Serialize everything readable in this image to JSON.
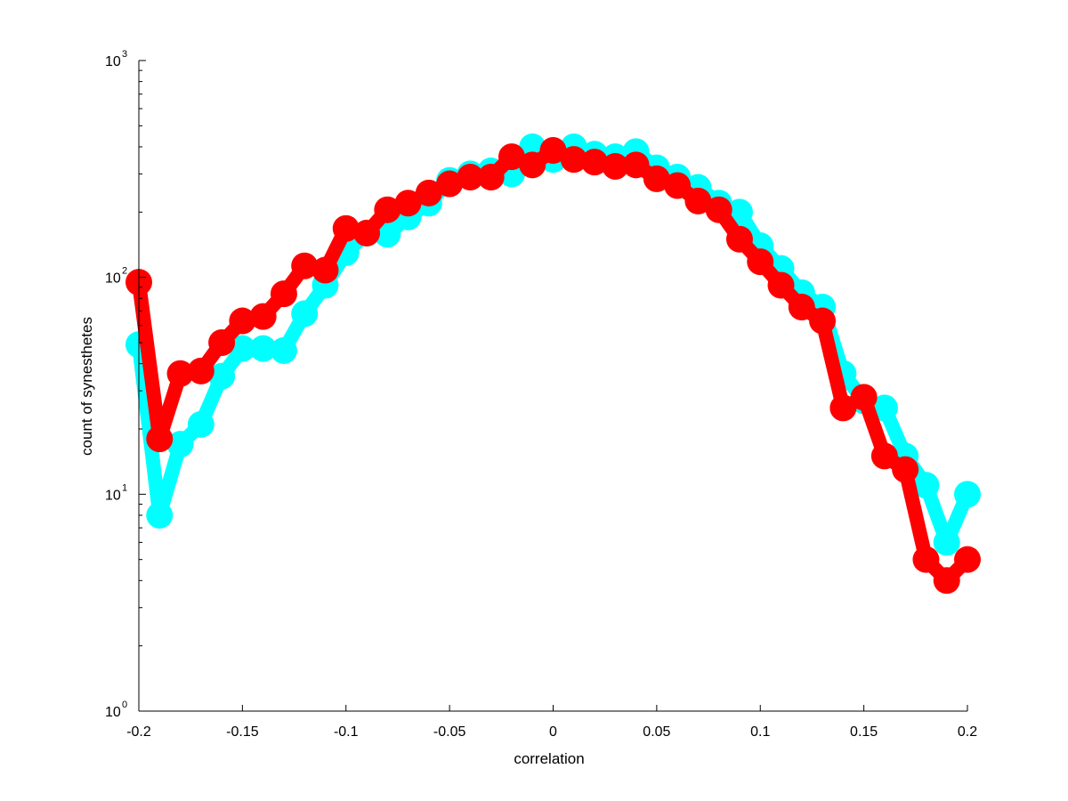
{
  "chart_data": {
    "type": "line",
    "title": "",
    "xlabel": "correlation",
    "ylabel": "count of synesthetes",
    "xlim": [
      -0.2,
      0.2
    ],
    "ylim": [
      1,
      1000
    ],
    "yscale": "log",
    "grid": false,
    "legend": "none",
    "x_ticks": [
      "-0.2",
      "-0.15",
      "-0.1",
      "-0.05",
      "0",
      "0.05",
      "0.1",
      "0.15",
      "0.2"
    ],
    "y_ticks": [
      {
        "base": "10",
        "exp": "0"
      },
      {
        "base": "10",
        "exp": "1"
      },
      {
        "base": "10",
        "exp": "2"
      },
      {
        "base": "10",
        "exp": "3"
      }
    ],
    "x": [
      -0.2,
      -0.19,
      -0.18,
      -0.17,
      -0.16,
      -0.15,
      -0.14,
      -0.13,
      -0.12,
      -0.11,
      -0.1,
      -0.09,
      -0.08,
      -0.07,
      -0.06,
      -0.05,
      -0.04,
      -0.03,
      -0.02,
      -0.01,
      0,
      0.01,
      0.02,
      0.03,
      0.04,
      0.05,
      0.06,
      0.07,
      0.08,
      0.09,
      0.1,
      0.11,
      0.12,
      0.13,
      0.14,
      0.15,
      0.16,
      0.17,
      0.18,
      0.19,
      0.2
    ],
    "series": [
      {
        "color": "#00ffff",
        "values": [
          49,
          8,
          17,
          21,
          35,
          47,
          47,
          46,
          68,
          92,
          130,
          160,
          158,
          190,
          220,
          280,
          300,
          310,
          300,
          400,
          350,
          400,
          370,
          360,
          380,
          320,
          290,
          260,
          220,
          200,
          140,
          110,
          85,
          73,
          36,
          27,
          25,
          15,
          11,
          6,
          10
        ]
      },
      {
        "color": "#ff0000",
        "values": [
          95,
          18,
          36,
          37,
          50,
          63,
          66,
          84,
          113,
          108,
          168,
          160,
          205,
          220,
          245,
          270,
          290,
          290,
          360,
          330,
          385,
          350,
          340,
          325,
          330,
          285,
          265,
          225,
          205,
          150,
          118,
          92,
          73,
          63,
          25,
          28,
          15,
          13,
          5,
          4,
          5
        ]
      }
    ]
  }
}
